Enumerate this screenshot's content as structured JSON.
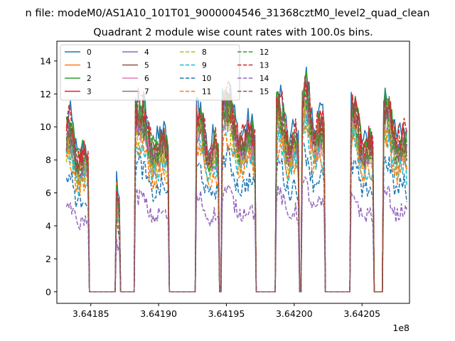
{
  "chart_data": {
    "type": "line",
    "suptitle": "n file: modeM0/AS1A10_101T01_9000004546_31368cztM0_level2_quad_clean",
    "title": "Quadrant 2 module wise count rates with 100.0s bins.",
    "xlabel": "",
    "ylabel": "",
    "x_offset_label": "1e8",
    "xlim": [
      3.641825,
      3.642085
    ],
    "ylim": [
      -0.7,
      15.2
    ],
    "xticks": [
      3.64185,
      3.6419,
      3.64195,
      3.642,
      3.64205
    ],
    "xtick_labels": [
      "3.64185",
      "3.64190",
      "3.64195",
      "3.64200",
      "3.64205"
    ],
    "yticks": [
      0,
      2,
      4,
      6,
      8,
      10,
      12,
      14
    ],
    "ytick_labels": [
      "0",
      "2",
      "4",
      "6",
      "8",
      "10",
      "12",
      "14"
    ],
    "grid": false,
    "legend_position": "top-left",
    "legend_columns": 4,
    "x_start": 3.641832,
    "bin_width": 1e-06,
    "segments": [
      {
        "on": [
          3.641832,
          3.641848
        ],
        "amp": 0.82
      },
      {
        "on": [
          3.641869,
          3.641871
        ],
        "amp": 0.55
      },
      {
        "on": [
          3.641883,
          3.641907
        ],
        "amp": 0.9
      },
      {
        "on": [
          3.641928,
          3.641944
        ],
        "amp": 0.88
      },
      {
        "on": [
          3.641947,
          3.641971
        ],
        "amp": 0.95
      },
      {
        "on": [
          3.641987,
          3.642003
        ],
        "amp": 0.92
      },
      {
        "on": [
          3.642006,
          3.642022
        ],
        "amp": 1.0
      },
      {
        "on": [
          3.642042,
          3.642058
        ],
        "amp": 0.9
      },
      {
        "on": [
          3.642066,
          3.642083
        ],
        "amp": 0.93
      }
    ],
    "series": [
      {
        "name": "0",
        "color": "#1f77b4",
        "dash": "solid",
        "scale": 11.2
      },
      {
        "name": "1",
        "color": "#ff7f0e",
        "dash": "solid",
        "scale": 10.0
      },
      {
        "name": "2",
        "color": "#2ca02c",
        "dash": "solid",
        "scale": 10.8
      },
      {
        "name": "3",
        "color": "#d62728",
        "dash": "solid",
        "scale": 10.4
      },
      {
        "name": "4",
        "color": "#9467bd",
        "dash": "solid",
        "scale": 9.9
      },
      {
        "name": "5",
        "color": "#8c564b",
        "dash": "solid",
        "scale": 10.1
      },
      {
        "name": "6",
        "color": "#e377c2",
        "dash": "solid",
        "scale": 9.6
      },
      {
        "name": "7",
        "color": "#7f7f7f",
        "dash": "solid",
        "scale": 9.8
      },
      {
        "name": "8",
        "color": "#bcbd22",
        "dash": "dashed",
        "scale": 9.4
      },
      {
        "name": "9",
        "color": "#17becf",
        "dash": "dashed",
        "scale": 8.8
      },
      {
        "name": "10",
        "color": "#1f77b4",
        "dash": "dashed",
        "scale": 7.4
      },
      {
        "name": "11",
        "color": "#ff7f0e",
        "dash": "dashed",
        "scale": 8.6
      },
      {
        "name": "12",
        "color": "#2ca02c",
        "dash": "dashed",
        "scale": 10.2
      },
      {
        "name": "13",
        "color": "#d62728",
        "dash": "dashed",
        "scale": 10.9
      },
      {
        "name": "14",
        "color": "#9467bd",
        "dash": "dashed",
        "scale": 5.6
      },
      {
        "name": "15",
        "color": "#8c564b",
        "dash": "dashed",
        "scale": 10.3
      }
    ]
  }
}
